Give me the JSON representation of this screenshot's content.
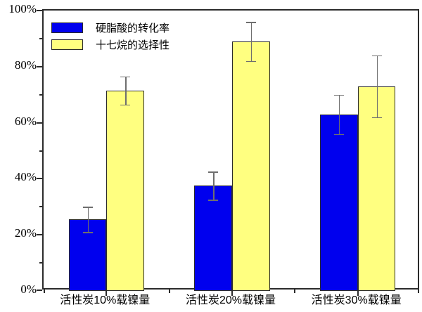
{
  "chart_data": {
    "type": "bar",
    "title": "",
    "xlabel": "",
    "ylabel": "",
    "categories": [
      "活性炭10%载镍量",
      "活性炭20%载镍量",
      "活性炭30%载镍量"
    ],
    "series": [
      {
        "name": "硬脂酸的转化率",
        "color": "#0000ee",
        "values": [
          25.5,
          37.5,
          63
        ],
        "errors": [
          4.5,
          5,
          7
        ]
      },
      {
        "name": "十七烷的选择性",
        "color": "#ffff80",
        "values": [
          71.5,
          89,
          73
        ],
        "errors": [
          5,
          7,
          11
        ]
      }
    ],
    "ylim": [
      0,
      100
    ],
    "y_tick_labels": [
      "0%",
      "20%",
      "40%",
      "60%",
      "80%",
      "100%"
    ],
    "y_major_step": 20,
    "y_minor_step": 10,
    "grid": false,
    "legend_position": "top-left",
    "axis_color": "#2b2b2b",
    "error_bar_color": "#6e6e6e",
    "background_color": "#ffffff"
  }
}
